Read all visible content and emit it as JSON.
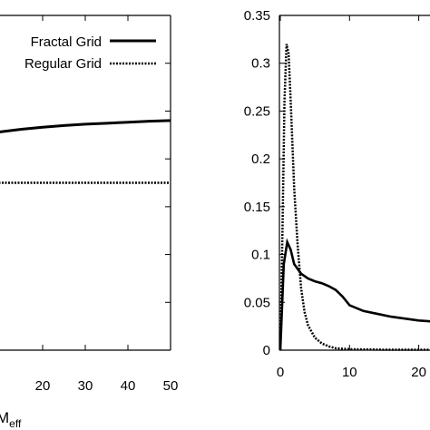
{
  "chart_data": [
    {
      "type": "line",
      "xlabel": "M",
      "xlabel_subscript": "eff",
      "xlim": [
        0,
        50
      ],
      "x_ticks": [
        "20",
        "30",
        "40",
        "50"
      ],
      "grid": false,
      "legend_position": "top-right",
      "series": [
        {
          "name": "Fractal Grid",
          "style": "solid",
          "color": "#000000",
          "x": [
            0,
            5,
            10,
            15,
            20,
            25,
            30,
            35,
            40,
            45,
            50
          ],
          "y": [
            0.62,
            0.64,
            0.652,
            0.66,
            0.666,
            0.671,
            0.675,
            0.678,
            0.681,
            0.684,
            0.686
          ]
        },
        {
          "name": "Regular Grid",
          "style": "dotted",
          "color": "#000000",
          "x": [
            0,
            10,
            20,
            30,
            40,
            50
          ],
          "y": [
            0.5,
            0.5,
            0.5,
            0.5,
            0.5,
            0.5
          ]
        }
      ]
    },
    {
      "type": "line",
      "xlim": [
        -1,
        25
      ],
      "ylim": [
        0,
        0.35
      ],
      "x_ticks": [
        "0",
        "10",
        "20"
      ],
      "y_ticks": [
        "0",
        "0.05",
        "0.1",
        "0.15",
        "0.2",
        "0.25",
        "0.3",
        "0.35"
      ],
      "grid": false,
      "series": [
        {
          "style": "solid",
          "color": "#000000",
          "x": [
            0,
            0.5,
            1,
            1.5,
            2,
            3,
            4,
            5,
            6,
            7,
            8,
            9,
            10,
            12,
            14,
            16,
            18,
            20,
            22,
            24
          ],
          "y": [
            0.0,
            0.09,
            0.113,
            0.105,
            0.09,
            0.08,
            0.075,
            0.072,
            0.07,
            0.067,
            0.063,
            0.056,
            0.047,
            0.041,
            0.038,
            0.035,
            0.033,
            0.031,
            0.03,
            0.029
          ]
        },
        {
          "style": "dotted",
          "color": "#000000",
          "x": [
            0,
            0.3,
            0.6,
            0.9,
            1.2,
            1.5,
            2,
            2.5,
            3,
            3.5,
            4,
            5,
            6,
            7,
            8,
            10,
            15,
            20,
            25
          ],
          "y": [
            0.0,
            0.12,
            0.26,
            0.32,
            0.31,
            0.26,
            0.17,
            0.11,
            0.065,
            0.04,
            0.026,
            0.013,
            0.007,
            0.004,
            0.002,
            0.001,
            0.0005,
            0.0005,
            0.0005
          ]
        }
      ]
    }
  ]
}
